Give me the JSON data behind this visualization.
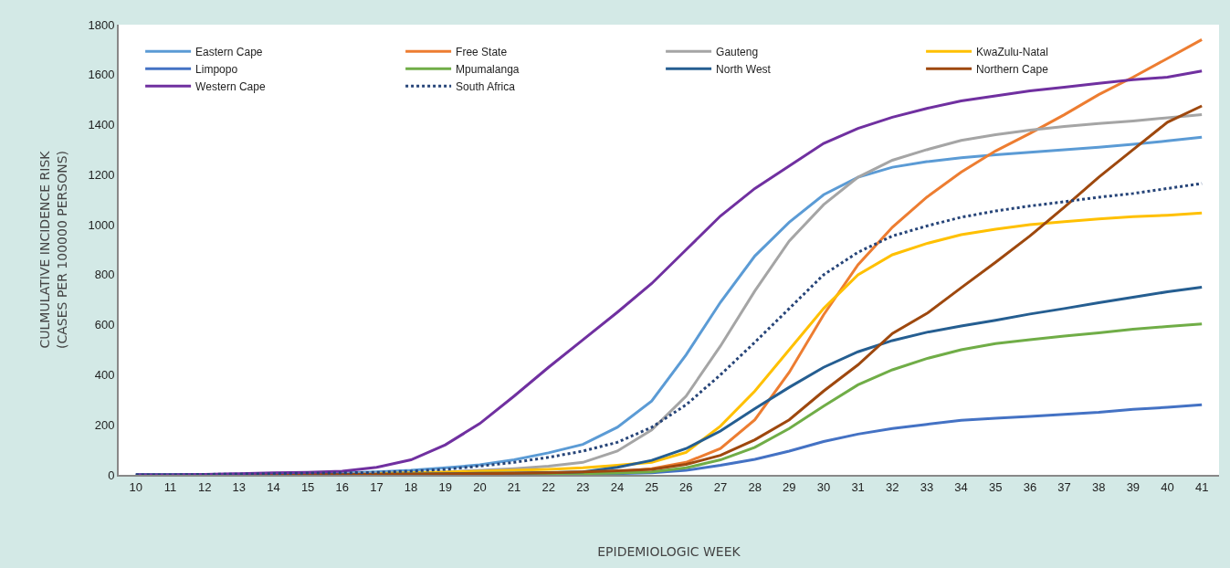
{
  "chart_data": {
    "type": "line",
    "xlabel": "EPIDEMIOLOGIC WEEK",
    "ylabel": "CULMULATIVE INCIDENCE RISK\n(CASES PER 100000 PERSONS)",
    "categories": [
      "10",
      "11",
      "12",
      "13",
      "14",
      "15",
      "16",
      "17",
      "18",
      "19",
      "20",
      "21",
      "22",
      "23",
      "24",
      "25",
      "26",
      "27",
      "28",
      "29",
      "30",
      "31",
      "32",
      "33",
      "34",
      "35",
      "36",
      "37",
      "38",
      "39",
      "40",
      "41"
    ],
    "ylim": [
      0,
      1800
    ],
    "yticks": [
      0,
      200,
      400,
      600,
      800,
      1000,
      1200,
      1400,
      1600,
      1800
    ],
    "legend": "top left",
    "marker": "none",
    "line_style": "solid",
    "series": [
      {
        "name": "Eastern Cape",
        "color": "#5b9bd5",
        "values": [
          0,
          0,
          1,
          2,
          3,
          5,
          7,
          12,
          18,
          28,
          40,
          60,
          88,
          122,
          190,
          295,
          480,
          690,
          875,
          1010,
          1120,
          1190,
          1230,
          1252,
          1268,
          1280,
          1290,
          1300,
          1310,
          1322,
          1335,
          1350
        ]
      },
      {
        "name": "Free State",
        "color": "#ed7d31",
        "values": [
          null,
          null,
          null,
          null,
          null,
          null,
          null,
          null,
          3,
          4,
          5,
          6,
          8,
          10,
          13,
          25,
          50,
          105,
          220,
          410,
          640,
          840,
          990,
          1110,
          1210,
          1295,
          1365,
          1440,
          1520,
          1590,
          1665,
          1740
        ]
      },
      {
        "name": "Gauteng",
        "color": "#a5a5a5",
        "values": [
          0,
          0,
          1,
          1,
          2,
          3,
          4,
          6,
          8,
          12,
          18,
          25,
          35,
          50,
          95,
          180,
          315,
          515,
          735,
          935,
          1080,
          1190,
          1258,
          1300,
          1337,
          1360,
          1378,
          1393,
          1405,
          1415,
          1428,
          1440
        ]
      },
      {
        "name": "KwaZulu-Natal",
        "color": "#ffc000",
        "values": [
          null,
          null,
          null,
          null,
          null,
          null,
          null,
          5,
          8,
          11,
          15,
          18,
          22,
          28,
          38,
          50,
          90,
          195,
          335,
          500,
          665,
          800,
          880,
          925,
          960,
          982,
          1000,
          1012,
          1023,
          1032,
          1038,
          1047
        ]
      },
      {
        "name": "Limpopo",
        "color": "#4472c4",
        "values": [
          0,
          0,
          0,
          0,
          0,
          0,
          0,
          1,
          1,
          2,
          2,
          3,
          3,
          4,
          5,
          8,
          18,
          38,
          62,
          95,
          133,
          163,
          185,
          202,
          218,
          226,
          234,
          242,
          250,
          262,
          270,
          280
        ]
      },
      {
        "name": "Mpumalanga",
        "color": "#70ad47",
        "values": [
          null,
          null,
          null,
          null,
          null,
          0,
          1,
          1,
          2,
          2,
          3,
          3,
          4,
          5,
          7,
          12,
          28,
          60,
          110,
          185,
          275,
          360,
          420,
          465,
          500,
          525,
          540,
          555,
          568,
          582,
          593,
          603
        ]
      },
      {
        "name": "North West",
        "color": "#255e91",
        "values": [
          0,
          0,
          0,
          0,
          1,
          1,
          2,
          3,
          4,
          5,
          6,
          7,
          9,
          12,
          30,
          58,
          105,
          175,
          265,
          350,
          430,
          492,
          537,
          570,
          595,
          618,
          643,
          665,
          688,
          710,
          732,
          750
        ]
      },
      {
        "name": "Northern Cape",
        "color": "#9e480e",
        "values": [
          null,
          null,
          null,
          0,
          0,
          1,
          1,
          2,
          3,
          4,
          5,
          6,
          8,
          12,
          16,
          22,
          42,
          78,
          140,
          220,
          335,
          440,
          565,
          645,
          748,
          850,
          955,
          1070,
          1190,
          1300,
          1410,
          1475
        ]
      },
      {
        "name": "Western Cape",
        "color": "#7030a0",
        "values": [
          0,
          0,
          2,
          5,
          8,
          10,
          15,
          30,
          60,
          120,
          205,
          315,
          430,
          540,
          650,
          765,
          900,
          1035,
          1145,
          1235,
          1325,
          1385,
          1430,
          1465,
          1495,
          1515,
          1535,
          1550,
          1565,
          1580,
          1590,
          1615
        ]
      },
      {
        "name": "South Africa",
        "color": "#264478",
        "line_style": "dotted",
        "values": [
          0,
          0,
          2,
          3,
          5,
          7,
          8,
          10,
          15,
          22,
          35,
          50,
          70,
          95,
          130,
          190,
          280,
          400,
          530,
          665,
          800,
          890,
          955,
          995,
          1030,
          1055,
          1075,
          1092,
          1110,
          1125,
          1145,
          1165
        ]
      }
    ]
  }
}
